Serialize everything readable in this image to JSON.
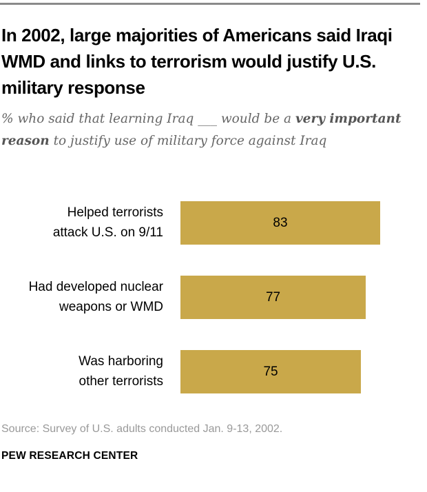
{
  "title": "In 2002, large majorities of Americans said Iraqi WMD and links to terrorism would justify U.S. military response",
  "subtitle": {
    "pre": "% who said that learning Iraq ___ would be a ",
    "bold": "very important reason",
    "post": " to justify use of military force against Iraq"
  },
  "chart_data": {
    "type": "bar",
    "orientation": "horizontal",
    "categories": [
      "Helped terrorists attack U.S. on 9/11",
      "Had developed nuclear weapons or WMD",
      "Was harboring other terrorists"
    ],
    "category_lines": [
      [
        "Helped terrorists",
        "attack U.S. on 9/11"
      ],
      [
        "Had developed nuclear",
        "weapons or WMD"
      ],
      [
        "Was harboring",
        "other terrorists"
      ]
    ],
    "values": [
      83,
      77,
      75
    ],
    "xlim": [
      0,
      100
    ],
    "color": "#c9a84a"
  },
  "source": "Source: Survey of U.S. adults conducted Jan. 9-13, 2002.",
  "brand": "PEW RESEARCH CENTER"
}
